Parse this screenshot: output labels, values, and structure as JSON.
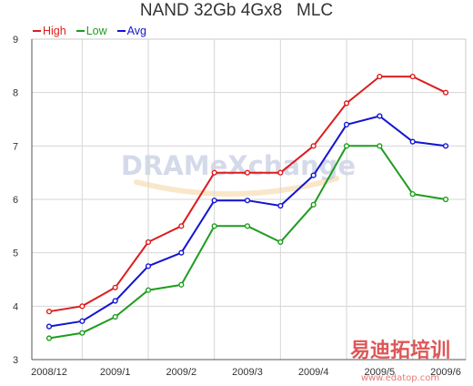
{
  "chart_data": {
    "type": "line",
    "title": "NAND 32Gb 4Gx8   MLC",
    "xlabel": "",
    "ylabel": "",
    "categories": [
      "2008/12",
      "",
      "2009/1",
      "",
      "2009/2",
      "",
      "2009/3",
      "",
      "2009/4",
      "",
      "2009/5",
      "",
      "2009/6"
    ],
    "series": [
      {
        "name": "High",
        "color": "#dd1c1c",
        "values": [
          3.9,
          4.0,
          4.35,
          5.2,
          5.5,
          6.5,
          6.5,
          6.5,
          7.0,
          7.8,
          8.3,
          8.3,
          8.0
        ]
      },
      {
        "name": "Low",
        "color": "#1e9c1e",
        "values": [
          3.4,
          3.5,
          3.8,
          4.3,
          4.4,
          5.5,
          5.5,
          5.2,
          5.9,
          7.0,
          7.0,
          6.1,
          6.0
        ]
      },
      {
        "name": "Avg",
        "color": "#1414d2",
        "values": [
          3.62,
          3.72,
          4.1,
          4.75,
          5.0,
          5.98,
          5.98,
          5.88,
          6.45,
          7.4,
          7.56,
          7.08,
          7.0
        ]
      }
    ],
    "ylim": [
      3,
      9
    ],
    "yticks": [
      3,
      4,
      5,
      6,
      7,
      8,
      9
    ],
    "grid": true,
    "legend_position": "top-left"
  },
  "watermarks": {
    "logo": "DRAMeXchange",
    "site_cn": "易迪拓培训",
    "site_url": "www.edatop.com"
  }
}
